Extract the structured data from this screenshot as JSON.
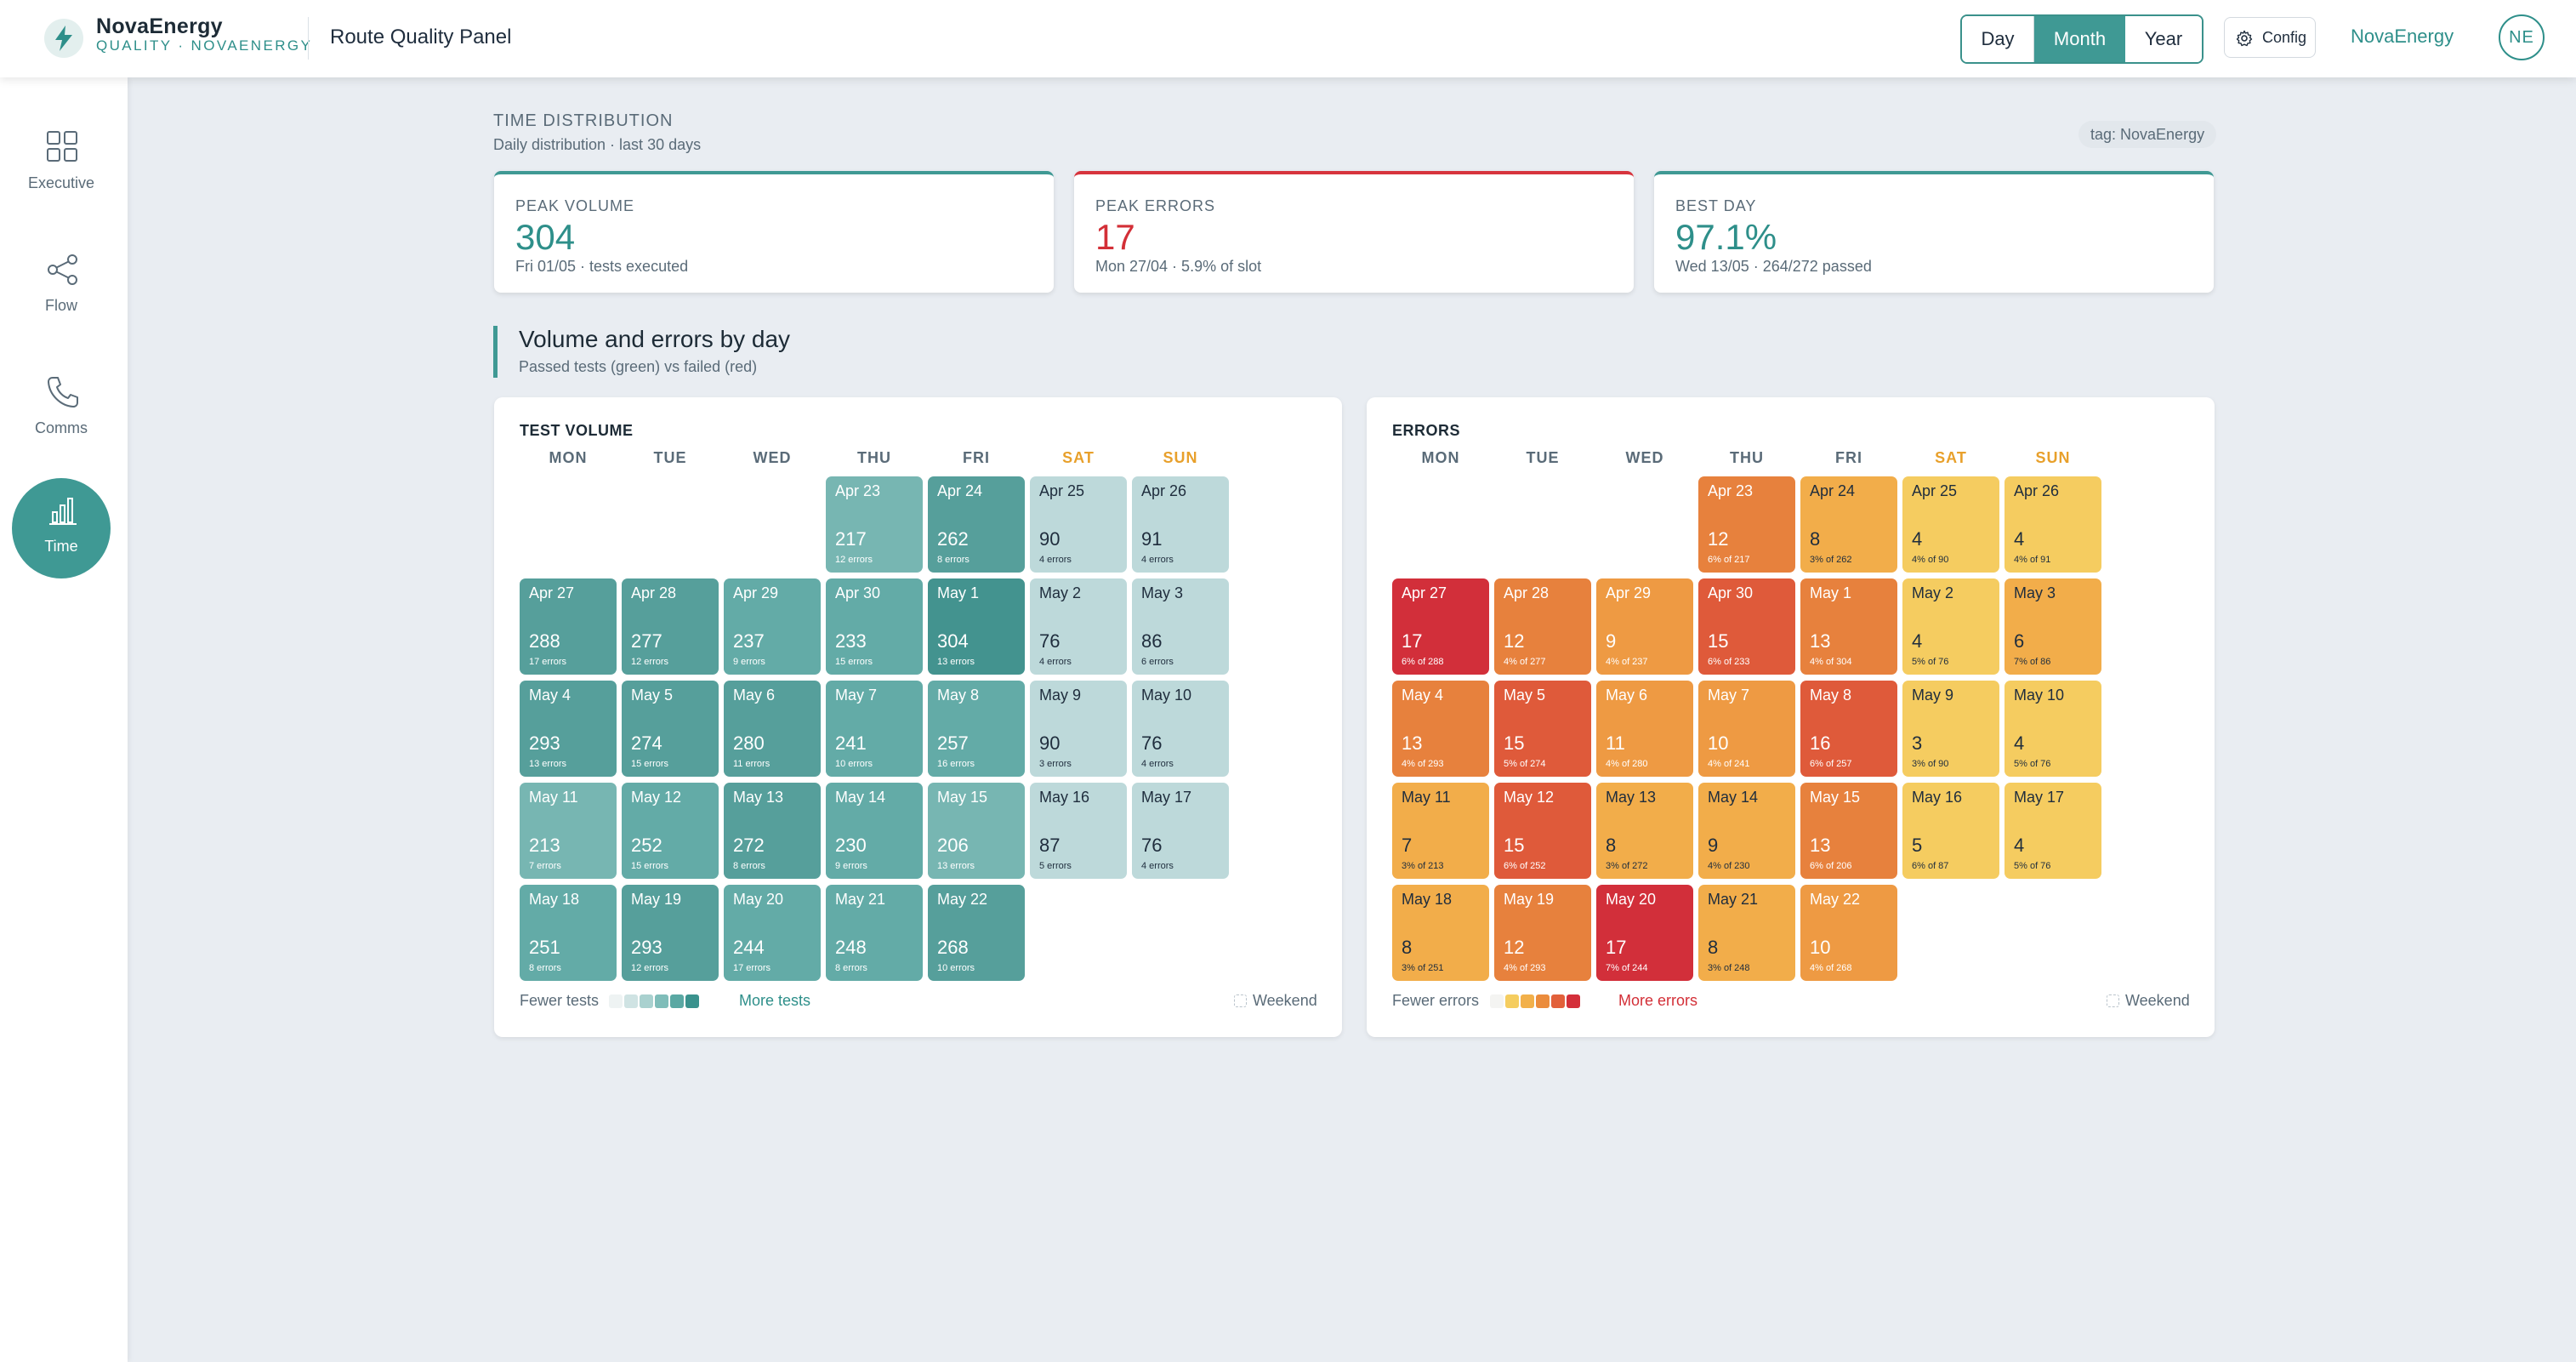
{
  "header": {
    "brand_name": "NovaEnergy",
    "brand_sub": "QUALITY · NOVAENERGY",
    "panel_title": "Route Quality Panel",
    "period_buttons": [
      "Day",
      "Month",
      "Year"
    ],
    "active_period": "Month",
    "config_label": "Config",
    "org_link": "NovaEnergy",
    "avatar_initials": "NE"
  },
  "sidebar": {
    "items": [
      {
        "label": "Executive",
        "icon": "grid-icon",
        "active": false
      },
      {
        "label": "Flow",
        "icon": "share-nodes-icon",
        "active": false
      },
      {
        "label": "Comms",
        "icon": "phone-icon",
        "active": false
      },
      {
        "label": "Time",
        "icon": "bar-chart-icon",
        "active": true
      }
    ]
  },
  "section": {
    "caption": "TIME DISTRIBUTION",
    "subtitle": "Daily distribution · last 30 days",
    "tag": "tag: NovaEnergy"
  },
  "kpis": [
    {
      "label": "PEAK VOLUME",
      "value": "304",
      "detail": "Fri 01/05 · tests executed",
      "tone": "teal"
    },
    {
      "label": "PEAK ERRORS",
      "value": "17",
      "detail": "Mon 27/04 · 5.9% of slot",
      "tone": "red"
    },
    {
      "label": "BEST DAY",
      "value": "97.1%",
      "detail": "Wed 13/05 · 264/272 passed",
      "tone": "teal"
    }
  ],
  "volume_section": {
    "title": "Volume and errors by day",
    "subtitle": "Passed tests (green) vs failed (red)"
  },
  "weekdays": [
    "MON",
    "TUE",
    "WED",
    "THU",
    "FRI",
    "SAT",
    "SUN"
  ],
  "test_volume": {
    "title": "TEST VOLUME",
    "legend_low": "Fewer tests",
    "legend_high": "More tests",
    "weekend_label": "Weekend",
    "legend_colors": [
      "#eef3f3",
      "#cfe3e3",
      "#a9d1cf",
      "#7fbdb9",
      "#5aa8a3",
      "#3a928d"
    ],
    "cells": [
      {
        "date": "Apr 23",
        "value": "217",
        "sub": "12 errors",
        "level": 2
      },
      {
        "date": "Apr 24",
        "value": "262",
        "sub": "8 errors",
        "level": 4
      },
      {
        "date": "Apr 25",
        "value": "90",
        "sub": "4 errors",
        "level": 0
      },
      {
        "date": "Apr 26",
        "value": "91",
        "sub": "4 errors",
        "level": 0
      },
      {
        "date": "Apr 27",
        "value": "288",
        "sub": "17 errors",
        "level": 4
      },
      {
        "date": "Apr 28",
        "value": "277",
        "sub": "12 errors",
        "level": 4
      },
      {
        "date": "Apr 29",
        "value": "237",
        "sub": "9 errors",
        "level": 3
      },
      {
        "date": "Apr 30",
        "value": "233",
        "sub": "15 errors",
        "level": 3
      },
      {
        "date": "May 1",
        "value": "304",
        "sub": "13 errors",
        "level": 5
      },
      {
        "date": "May 2",
        "value": "76",
        "sub": "4 errors",
        "level": 0
      },
      {
        "date": "May 3",
        "value": "86",
        "sub": "6 errors",
        "level": 0
      },
      {
        "date": "May 4",
        "value": "293",
        "sub": "13 errors",
        "level": 4
      },
      {
        "date": "May 5",
        "value": "274",
        "sub": "15 errors",
        "level": 4
      },
      {
        "date": "May 6",
        "value": "280",
        "sub": "11 errors",
        "level": 4
      },
      {
        "date": "May 7",
        "value": "241",
        "sub": "10 errors",
        "level": 3
      },
      {
        "date": "May 8",
        "value": "257",
        "sub": "16 errors",
        "level": 3
      },
      {
        "date": "May 9",
        "value": "90",
        "sub": "3 errors",
        "level": 0
      },
      {
        "date": "May 10",
        "value": "76",
        "sub": "4 errors",
        "level": 0
      },
      {
        "date": "May 11",
        "value": "213",
        "sub": "7 errors",
        "level": 2
      },
      {
        "date": "May 12",
        "value": "252",
        "sub": "15 errors",
        "level": 3
      },
      {
        "date": "May 13",
        "value": "272",
        "sub": "8 errors",
        "level": 4
      },
      {
        "date": "May 14",
        "value": "230",
        "sub": "9 errors",
        "level": 3
      },
      {
        "date": "May 15",
        "value": "206",
        "sub": "13 errors",
        "level": 2
      },
      {
        "date": "May 16",
        "value": "87",
        "sub": "5 errors",
        "level": 0
      },
      {
        "date": "May 17",
        "value": "76",
        "sub": "4 errors",
        "level": 0
      },
      {
        "date": "May 18",
        "value": "251",
        "sub": "8 errors",
        "level": 3
      },
      {
        "date": "May 19",
        "value": "293",
        "sub": "12 errors",
        "level": 4
      },
      {
        "date": "May 20",
        "value": "244",
        "sub": "17 errors",
        "level": 3
      },
      {
        "date": "May 21",
        "value": "248",
        "sub": "8 errors",
        "level": 3
      },
      {
        "date": "May 22",
        "value": "268",
        "sub": "10 errors",
        "level": 4
      }
    ]
  },
  "errors": {
    "title": "ERRORS",
    "legend_low": "Fewer errors",
    "legend_high": "More errors",
    "weekend_label": "Weekend",
    "legend_colors": [
      "#f4f4f2",
      "#f5cd5f",
      "#f2b04a",
      "#eb8c3c",
      "#e2603a",
      "#d42f3a"
    ],
    "cells": [
      {
        "date": "Apr 23",
        "value": "12",
        "sub": "6% of 217",
        "level": 3
      },
      {
        "date": "Apr 24",
        "value": "8",
        "sub": "3% of 262",
        "level": 1
      },
      {
        "date": "Apr 25",
        "value": "4",
        "sub": "4% of 90",
        "level": 0
      },
      {
        "date": "Apr 26",
        "value": "4",
        "sub": "4% of 91",
        "level": 0
      },
      {
        "date": "Apr 27",
        "value": "17",
        "sub": "6% of 288",
        "level": 5
      },
      {
        "date": "Apr 28",
        "value": "12",
        "sub": "4% of 277",
        "level": 3
      },
      {
        "date": "Apr 29",
        "value": "9",
        "sub": "4% of 237",
        "level": 2
      },
      {
        "date": "Apr 30",
        "value": "15",
        "sub": "6% of 233",
        "level": 4
      },
      {
        "date": "May 1",
        "value": "13",
        "sub": "4% of 304",
        "level": 3
      },
      {
        "date": "May 2",
        "value": "4",
        "sub": "5% of 76",
        "level": 0
      },
      {
        "date": "May 3",
        "value": "6",
        "sub": "7% of 86",
        "level": 1
      },
      {
        "date": "May 4",
        "value": "13",
        "sub": "4% of 293",
        "level": 3
      },
      {
        "date": "May 5",
        "value": "15",
        "sub": "5% of 274",
        "level": 4
      },
      {
        "date": "May 6",
        "value": "11",
        "sub": "4% of 280",
        "level": 2
      },
      {
        "date": "May 7",
        "value": "10",
        "sub": "4% of 241",
        "level": 2
      },
      {
        "date": "May 8",
        "value": "16",
        "sub": "6% of 257",
        "level": 4
      },
      {
        "date": "May 9",
        "value": "3",
        "sub": "3% of 90",
        "level": 0
      },
      {
        "date": "May 10",
        "value": "4",
        "sub": "5% of 76",
        "level": 0
      },
      {
        "date": "May 11",
        "value": "7",
        "sub": "3% of 213",
        "level": 1
      },
      {
        "date": "May 12",
        "value": "15",
        "sub": "6% of 252",
        "level": 4
      },
      {
        "date": "May 13",
        "value": "8",
        "sub": "3% of 272",
        "level": 1
      },
      {
        "date": "May 14",
        "value": "9",
        "sub": "4% of 230",
        "level": 1
      },
      {
        "date": "May 15",
        "value": "13",
        "sub": "6% of 206",
        "level": 3
      },
      {
        "date": "May 16",
        "value": "5",
        "sub": "6% of 87",
        "level": 0
      },
      {
        "date": "May 17",
        "value": "4",
        "sub": "5% of 76",
        "level": 0
      },
      {
        "date": "May 18",
        "value": "8",
        "sub": "3% of 251",
        "level": 1
      },
      {
        "date": "May 19",
        "value": "12",
        "sub": "4% of 293",
        "level": 3
      },
      {
        "date": "May 20",
        "value": "17",
        "sub": "7% of 244",
        "level": 5
      },
      {
        "date": "May 21",
        "value": "8",
        "sub": "3% of 248",
        "level": 1
      },
      {
        "date": "May 22",
        "value": "10",
        "sub": "4% of 268",
        "level": 2
      }
    ]
  },
  "colors": {
    "accent": "#3f9994",
    "error": "#d42f3a",
    "weekend": "#e8a02b",
    "vol_levels": [
      "#bdd9da",
      "#8fc2bf",
      "#77b6b2",
      "#63aba7",
      "#569f9b",
      "#43938f"
    ],
    "vol_text_dark_levels": [
      0
    ],
    "err_levels": [
      "#f5cc60",
      "#f2ad4a",
      "#ee9a43",
      "#e7813d",
      "#df5a3a",
      "#d22f3a"
    ],
    "err_text_dark_levels": [
      0,
      1
    ]
  }
}
